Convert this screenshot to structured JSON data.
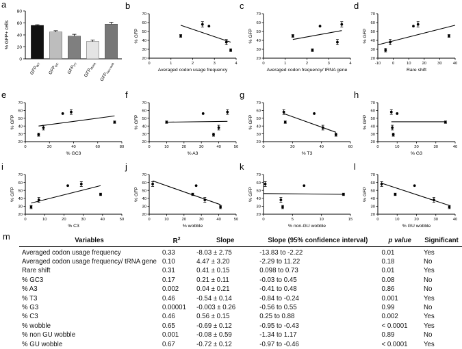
{
  "chart_data": [
    {
      "panel": "a",
      "type": "bar",
      "ylabel": "% GFP+ cells",
      "ylim": [
        0,
        80
      ],
      "yticks": [
        0,
        20,
        40,
        60,
        80
      ],
      "categories": [
        {
          "base": "GFP",
          "sub": "WT"
        },
        {
          "base": "GFP",
          "sub": "GC"
        },
        {
          "base": "GFP",
          "sub": "PT"
        },
        {
          "base": "GFP",
          "sub": "Mosq"
        },
        {
          "base": "GFP",
          "sub": "Non-wob"
        }
      ],
      "values": [
        56,
        45,
        38,
        29,
        58
      ],
      "errors": [
        1,
        2,
        3,
        2.5,
        3
      ],
      "colors": [
        "#111111",
        "#bdbdbd",
        "#7f7f7f",
        "#e4e4e4",
        "#777777"
      ]
    },
    {
      "panel": "b",
      "type": "scatter",
      "xlabel": "Averaged codon usage frequency",
      "ylabel": "% GFP",
      "xlim": [
        0,
        4
      ],
      "ylim": [
        20,
        70
      ],
      "xticks": [
        0,
        1,
        2,
        3,
        4
      ],
      "yticks": [
        20,
        30,
        40,
        50,
        60,
        70
      ],
      "points": [
        [
          1.45,
          45,
          1.5
        ],
        [
          2.45,
          58,
          3
        ],
        [
          2.75,
          56,
          0
        ],
        [
          3.55,
          38,
          3
        ],
        [
          3.75,
          29,
          1.5
        ]
      ],
      "line": [
        [
          1.45,
          57
        ],
        [
          3.75,
          38
        ]
      ]
    },
    {
      "panel": "c",
      "type": "scatter",
      "xlabel": "Averaged codon frequency/ tRNA gene",
      "ylabel": "% GFP",
      "xlim": [
        0,
        4
      ],
      "ylim": [
        20,
        70
      ],
      "xticks": [
        0,
        1,
        2,
        3,
        4
      ],
      "yticks": [
        20,
        30,
        40,
        50,
        60,
        70
      ],
      "points": [
        [
          1.35,
          45,
          1.5
        ],
        [
          2.25,
          29,
          1.5
        ],
        [
          2.6,
          56,
          0
        ],
        [
          3.4,
          38,
          3
        ],
        [
          3.6,
          58,
          3
        ]
      ],
      "line": [
        [
          1.35,
          41
        ],
        [
          3.6,
          51
        ]
      ]
    },
    {
      "panel": "d",
      "type": "scatter",
      "xlabel": "Rare shift",
      "ylabel": "% GFP",
      "xlim": [
        -10,
        40
      ],
      "ylim": [
        20,
        70
      ],
      "xticks": [
        -10,
        0,
        10,
        20,
        30,
        40
      ],
      "yticks": [
        20,
        30,
        40,
        50,
        60,
        70
      ],
      "points": [
        [
          -5,
          29,
          2
        ],
        [
          -2,
          38,
          3
        ],
        [
          13,
          56,
          0
        ],
        [
          16,
          58,
          3
        ],
        [
          36,
          45,
          1.5
        ]
      ],
      "line": [
        [
          -10,
          35
        ],
        [
          40,
          57
        ]
      ]
    },
    {
      "panel": "e",
      "type": "scatter",
      "xlabel": "% GC3",
      "ylabel": "% GFP",
      "xlim": [
        0,
        80
      ],
      "ylim": [
        20,
        70
      ],
      "xticks": [
        0,
        20,
        40,
        60,
        80
      ],
      "yticks": [
        20,
        30,
        40,
        50,
        60,
        70
      ],
      "points": [
        [
          11,
          29,
          2
        ],
        [
          15,
          38,
          3
        ],
        [
          31,
          56,
          0
        ],
        [
          38,
          58,
          3
        ],
        [
          74,
          45,
          1.5
        ]
      ],
      "line": [
        [
          11,
          40
        ],
        [
          74,
          53
        ]
      ]
    },
    {
      "panel": "f",
      "type": "scatter",
      "xlabel": "% A3",
      "ylabel": "% GFP",
      "xlim": [
        0,
        50
      ],
      "ylim": [
        20,
        70
      ],
      "xticks": [
        0,
        10,
        20,
        30,
        40,
        50
      ],
      "yticks": [
        20,
        30,
        40,
        50,
        60,
        70
      ],
      "points": [
        [
          10,
          45,
          1.5
        ],
        [
          31,
          56,
          0
        ],
        [
          37,
          29,
          2
        ],
        [
          40,
          38,
          3
        ],
        [
          45,
          58,
          3
        ]
      ],
      "line": [
        [
          10,
          45
        ],
        [
          45,
          46
        ]
      ]
    },
    {
      "panel": "g",
      "type": "scatter",
      "xlabel": "% T3",
      "ylabel": "% GFP",
      "xlim": [
        0,
        60
      ],
      "ylim": [
        20,
        70
      ],
      "xticks": [
        0,
        20,
        40,
        60
      ],
      "yticks": [
        20,
        30,
        40,
        50,
        60,
        70
      ],
      "points": [
        [
          14,
          58,
          3
        ],
        [
          15,
          45,
          1.5
        ],
        [
          35,
          56,
          0
        ],
        [
          41,
          38,
          3
        ],
        [
          50,
          29,
          2
        ]
      ],
      "line": [
        [
          14,
          56
        ],
        [
          50,
          32
        ]
      ]
    },
    {
      "panel": "h",
      "type": "scatter",
      "xlabel": "% G3",
      "ylabel": "% GFP",
      "xlim": [
        0,
        40
      ],
      "ylim": [
        20,
        70
      ],
      "xticks": [
        0,
        10,
        20,
        30,
        40
      ],
      "yticks": [
        20,
        30,
        40,
        50,
        60,
        70
      ],
      "points": [
        [
          7,
          58,
          3
        ],
        [
          7.5,
          38,
          3
        ],
        [
          8,
          29,
          2
        ],
        [
          10,
          56,
          0
        ],
        [
          35,
          45,
          1.5
        ]
      ],
      "line": [
        [
          7,
          45.5
        ],
        [
          35,
          45.5
        ]
      ]
    },
    {
      "panel": "i",
      "type": "scatter",
      "xlabel": "% C3",
      "ylabel": "% GFP",
      "xlim": [
        0,
        50
      ],
      "ylim": [
        20,
        70
      ],
      "xticks": [
        0,
        10,
        20,
        30,
        40,
        50
      ],
      "yticks": [
        20,
        30,
        40,
        50,
        60,
        70
      ],
      "points": [
        [
          3,
          29,
          2
        ],
        [
          7,
          38,
          3
        ],
        [
          22,
          56,
          0
        ],
        [
          29,
          58,
          3
        ],
        [
          39,
          45,
          1.5
        ]
      ],
      "line": [
        [
          3,
          34
        ],
        [
          39,
          56
        ]
      ]
    },
    {
      "panel": "j",
      "type": "scatter",
      "xlabel": "% wobble",
      "ylabel": "% GFP",
      "xlim": [
        0,
        50
      ],
      "ylim": [
        20,
        70
      ],
      "xticks": [
        0,
        10,
        20,
        30,
        40,
        50
      ],
      "yticks": [
        20,
        30,
        40,
        50,
        60,
        70
      ],
      "points": [
        [
          2,
          58,
          3
        ],
        [
          27,
          56,
          0
        ],
        [
          25,
          45,
          1.5
        ],
        [
          32,
          38,
          3
        ],
        [
          41,
          29,
          2
        ]
      ],
      "line": [
        [
          2,
          62
        ],
        [
          41,
          32
        ]
      ]
    },
    {
      "panel": "k",
      "type": "scatter",
      "xlabel": "% non-GU wobble",
      "ylabel": "% GFP",
      "xlim": [
        0,
        15
      ],
      "ylim": [
        20,
        70
      ],
      "xticks": [
        0,
        5,
        10,
        15
      ],
      "yticks": [
        20,
        30,
        40,
        50,
        60,
        70
      ],
      "points": [
        [
          0.3,
          58,
          3
        ],
        [
          3,
          38,
          3
        ],
        [
          3.3,
          29,
          2
        ],
        [
          7,
          56,
          0
        ],
        [
          13.8,
          45,
          1.5
        ]
      ],
      "line": [
        [
          0,
          46
        ],
        [
          13.8,
          45
        ]
      ]
    },
    {
      "panel": "l",
      "type": "scatter",
      "xlabel": "% GU wobble",
      "ylabel": "% GFP",
      "xlim": [
        0,
        40
      ],
      "ylim": [
        20,
        70
      ],
      "xticks": [
        0,
        10,
        20,
        30,
        40
      ],
      "yticks": [
        20,
        30,
        40,
        50,
        60,
        70
      ],
      "points": [
        [
          2,
          58,
          3
        ],
        [
          9,
          45,
          1.5
        ],
        [
          19,
          56,
          0
        ],
        [
          29,
          38,
          3
        ],
        [
          37,
          29,
          2
        ]
      ],
      "line": [
        [
          2,
          59
        ],
        [
          37,
          31
        ]
      ]
    }
  ],
  "stats_table": {
    "panel_label": "m",
    "headers": {
      "variables": "Variables",
      "r2": "R",
      "r2_sup": "2",
      "slope": "Slope",
      "slope_ci": "Slope (95% confidence interval)",
      "p_value": "p value",
      "significant": "Significant"
    },
    "rows": [
      {
        "variable": "Averaged codon usage frequency",
        "r2": "0.33",
        "slope": "-8.03 ± 2.75",
        "ci": "-13.83 to -2.22",
        "p": "0.01",
        "sig": "Yes"
      },
      {
        "variable": "Averaged codon usage frequency/ tRNA gene",
        "r2": "0.10",
        "slope": "4.47 ± 3.20",
        "ci": "-2.29 to 11.22",
        "p": "0.18",
        "sig": "No"
      },
      {
        "variable": "Rare shift",
        "r2": "0.31",
        "slope": "0.41 ± 0.15",
        "ci": "0.098 to 0.73",
        "p": "0.01",
        "sig": "Yes"
      },
      {
        "variable": "% GC3",
        "r2": "0.17",
        "slope": "0.21 ± 0.11",
        "ci": "-0.03 to 0.45",
        "p": "0.08",
        "sig": "No"
      },
      {
        "variable": "% A3",
        "r2": "0.002",
        "slope": "0.04 ± 0.21",
        "ci": "-0.41 to 0.48",
        "p": "0.86",
        "sig": "No"
      },
      {
        "variable": "% T3",
        "r2": "0.46",
        "slope": "-0.54 ± 0.14",
        "ci": "-0.84 to -0.24",
        "p": "0.001",
        "sig": "Yes"
      },
      {
        "variable": "% G3",
        "r2": "0.00001",
        "slope": "-0.003 ± 0.26",
        "ci": "-0.56 to 0.55",
        "p": "0.99",
        "sig": "No"
      },
      {
        "variable": "% C3",
        "r2": "0.46",
        "slope": "0.56 ± 0.15",
        "ci": "0.25 to 0.88",
        "p": "0.002",
        "sig": "Yes"
      },
      {
        "variable": "% wobble",
        "r2": "0.65",
        "slope": "-0.69 ± 0.12",
        "ci": "-0.95 to -0.43",
        "p": "< 0.0001",
        "sig": "Yes"
      },
      {
        "variable": "% non GU wobble",
        "r2": "0.001",
        "slope": "-0.08 ± 0.59",
        "ci": "-1.34 to 1.17",
        "p": "0.89",
        "sig": "No"
      },
      {
        "variable": "% GU wobble",
        "r2": "0.67",
        "slope": "-0.72 ± 0.12",
        "ci": "-0.97 to -0.46",
        "p": "< 0.0001",
        "sig": "Yes"
      }
    ]
  }
}
